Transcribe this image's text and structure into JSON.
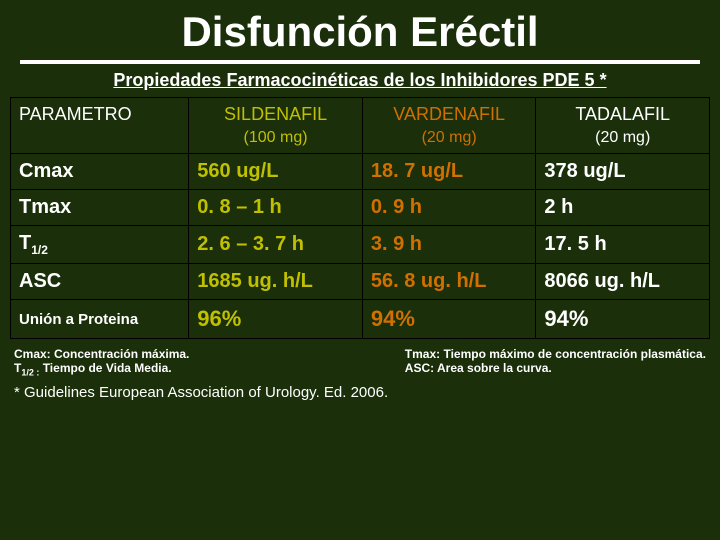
{
  "title": "Disfunción Eréctil",
  "subtitle": "Propiedades Farmacocinéticas de los Inhibidores PDE 5 *",
  "colors": {
    "background": "#1a2f0a",
    "text": "#ffffff",
    "col1": "#c0c000",
    "col2": "#d07000",
    "col3": "#ffffff",
    "border": "#000000"
  },
  "header": {
    "param": "PARAMETRO",
    "cols": [
      {
        "name": "SILDENAFIL",
        "dose": "(100 mg)"
      },
      {
        "name": "VARDENAFIL",
        "dose": "(20 mg)"
      },
      {
        "name": "TADALAFIL",
        "dose": "(20 mg)"
      }
    ]
  },
  "rows": [
    {
      "label": "Cmax",
      "c1": "560 ug/L",
      "c2": "18. 7 ug/L",
      "c3": "378 ug/L"
    },
    {
      "label": "Tmax",
      "c1": "0. 8 – 1 h",
      "c2": "0. 9 h",
      "c3": "2 h"
    },
    {
      "label_html": "T<sub>1/2</sub>",
      "label": "T1/2",
      "c1": "2. 6 – 3. 7 h",
      "c2": "3. 9 h",
      "c3": "17. 5 h"
    },
    {
      "label": "ASC",
      "c1": "1685 ug. h/L",
      "c2": "56. 8 ug. h/L",
      "c3": "8066 ug. h/L"
    },
    {
      "label": "Unión a Proteina",
      "small": true,
      "c1": "96%",
      "c2": "94%",
      "c3": "94%"
    }
  ],
  "legend": {
    "l1": "Cmax: Concentración máxima.",
    "l2_pre": "T",
    "l2_sub": "1/2 :",
    "l2_post": " Tiempo de Vida Media.",
    "r1": "Tmax: Tiempo máximo de concentración plasmática.",
    "r2": "ASC: Area sobre la curva."
  },
  "footnote": "* Guidelines European Association of Urology.  Ed. 2006."
}
